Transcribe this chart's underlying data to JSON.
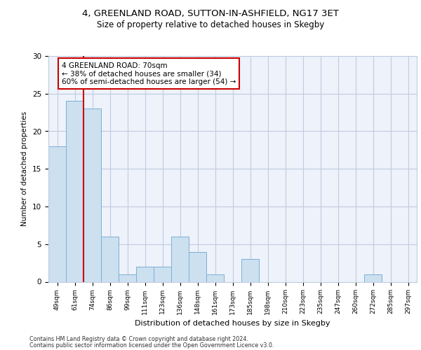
{
  "title1": "4, GREENLAND ROAD, SUTTON-IN-ASHFIELD, NG17 3ET",
  "title2": "Size of property relative to detached houses in Skegby",
  "xlabel": "Distribution of detached houses by size in Skegby",
  "ylabel": "Number of detached properties",
  "categories": [
    "49sqm",
    "61sqm",
    "74sqm",
    "86sqm",
    "99sqm",
    "111sqm",
    "123sqm",
    "136sqm",
    "148sqm",
    "161sqm",
    "173sqm",
    "185sqm",
    "198sqm",
    "210sqm",
    "223sqm",
    "235sqm",
    "247sqm",
    "260sqm",
    "272sqm",
    "285sqm",
    "297sqm"
  ],
  "values": [
    18,
    24,
    23,
    6,
    1,
    2,
    2,
    6,
    4,
    1,
    0,
    3,
    0,
    0,
    0,
    0,
    0,
    0,
    1,
    0,
    0
  ],
  "bar_color": "#cce0f0",
  "bar_edge_color": "#7ab0d4",
  "highlight_line_color": "#cc0000",
  "annotation_text": "4 GREENLAND ROAD: 70sqm\n← 38% of detached houses are smaller (34)\n60% of semi-detached houses are larger (54) →",
  "annotation_box_color": "white",
  "annotation_box_edge_color": "#cc0000",
  "ylim": [
    0,
    30
  ],
  "yticks": [
    0,
    5,
    10,
    15,
    20,
    25,
    30
  ],
  "footer1": "Contains HM Land Registry data © Crown copyright and database right 2024.",
  "footer2": "Contains public sector information licensed under the Open Government Licence v3.0.",
  "bg_color": "#eef2fa",
  "grid_color": "#c0cce0"
}
